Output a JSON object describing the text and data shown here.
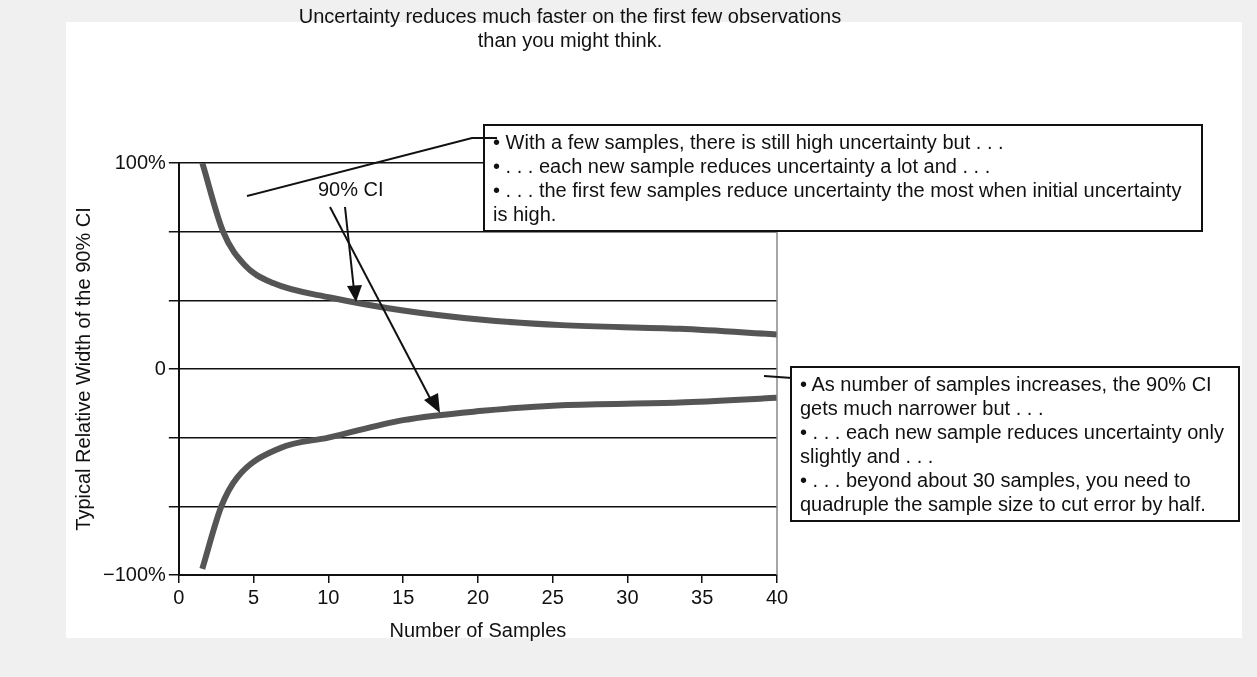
{
  "chart_data": {
    "type": "line",
    "title": "Uncertainty reduces much faster on the first few observations than you might think.",
    "xlabel": "Number of Samples",
    "ylabel": "Typical Relative Width of the 90% CI",
    "series": [
      {
        "color": "#555555",
        "x": [
          1.57,
          2.96,
          4.4,
          6.3,
          10.2,
          15,
          20.3,
          25.6,
          33.5,
          40
        ],
        "values": [
          100,
          66.7,
          50.5,
          41.7,
          34.6,
          28.4,
          23.9,
          21.3,
          19.5,
          16.8
        ]
      },
      {
        "color": "#555555",
        "x": [
          1.57,
          2.84,
          3.9,
          6.8,
          10,
          15,
          20.3,
          25.6,
          33.5,
          40
        ],
        "values": [
          -97,
          -66.7,
          -52.7,
          -38.3,
          -33.3,
          -24.8,
          -20.3,
          -17.6,
          -16.3,
          -14
        ]
      }
    ],
    "xlim": [
      0,
      40
    ],
    "xticks": [
      0,
      5,
      10,
      15,
      20,
      25,
      30,
      35,
      40
    ],
    "ylim": [
      -100,
      100
    ],
    "yticks": [
      {
        "value": 100,
        "label": "100%"
      },
      {
        "value": 66.67,
        "label": null
      },
      {
        "value": 33.33,
        "label": null
      },
      {
        "value": 0,
        "label": "0"
      },
      {
        "value": -33.33,
        "label": null
      },
      {
        "value": -66.67,
        "label": null
      },
      {
        "value": -100,
        "label": "−100%"
      }
    ],
    "grid": "y",
    "legend": false,
    "marker": "none",
    "line_style": "solid",
    "annotations": [
      "90% CI",
      "• With a few samples, there is still high uncertainty but . . .\n•  . . . each new sample reduces uncertainty a lot and . . .\n•  . . . the first few samples reduce uncertainty the most when initial uncertainty is high.",
      "• As number of samples increases, the 90% CI gets much narrower but . . .\n•  . . . each new sample reduces uncertainty only slightly and . . .\n•  . . . beyond about 30 samples, you need to quadruple the sample size to cut error by half."
    ]
  }
}
